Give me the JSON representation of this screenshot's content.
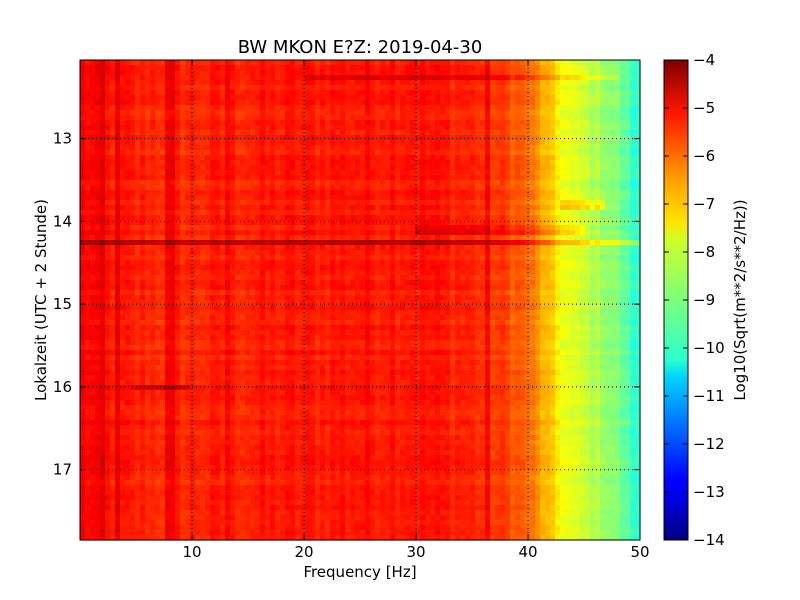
{
  "chart_data": {
    "type": "heatmap",
    "title": "BW MKON E?Z: 2019-04-30",
    "xlabel": "Frequency [Hz]",
    "ylabel": "Lokalzeit (UTC + 2 Stunde)",
    "xlim": [
      0,
      50
    ],
    "ylim": [
      12.05,
      17.85
    ],
    "y_inverted": true,
    "xticks": [
      10,
      20,
      30,
      40,
      50
    ],
    "yticks": [
      13,
      14,
      15,
      16,
      17
    ],
    "grid": true,
    "colormap": "jet",
    "colorbar": {
      "label": "Log10(Sqrt(m**2/s**2/Hz))",
      "range": [
        -14,
        -4
      ],
      "ticks": [
        -4,
        -5,
        -6,
        -7,
        -8,
        -9,
        -10,
        -11,
        -12,
        -13,
        -14
      ]
    },
    "spectrum_profile": {
      "frequency_hz": [
        0,
        2,
        5,
        10,
        20,
        30,
        35,
        38,
        40,
        41,
        42,
        43,
        44,
        45,
        46,
        47,
        48,
        49,
        50
      ],
      "log_amplitude": [
        -5.2,
        -5.4,
        -5.6,
        -5.6,
        -5.5,
        -5.4,
        -5.6,
        -5.9,
        -6.3,
        -6.8,
        -7.3,
        -7.8,
        -8.1,
        -8.3,
        -8.5,
        -8.7,
        -9.0,
        -9.5,
        -10.0
      ]
    },
    "bands": [
      {
        "time": 12.25,
        "freq_range": [
          20,
          48
        ],
        "delta": 0.5
      },
      {
        "time": 13.8,
        "freq_range": [
          43,
          47
        ],
        "delta": 0.8
      },
      {
        "time": 14.1,
        "freq_range": [
          30,
          45
        ],
        "delta": 0.5
      },
      {
        "time": 14.25,
        "freq_range": [
          0,
          50
        ],
        "delta": 0.9
      },
      {
        "time": 16.0,
        "freq_range": [
          5,
          10
        ],
        "delta": 0.7
      }
    ],
    "strong_frequency_lines_hz": [
      2,
      3.5,
      8,
      13.3,
      36.5
    ]
  }
}
